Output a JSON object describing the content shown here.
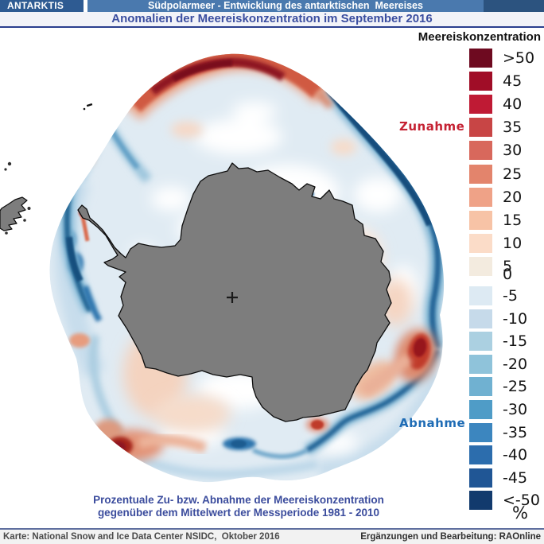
{
  "header": {
    "region_label": "ANTARKTIS",
    "title": "Südpolarmeer - Entwicklung des antarktischen  Meereises",
    "subtitle": "Anomalien der Meereiskonzentration im September 2016"
  },
  "legend": {
    "title": "Meereiskonzentration",
    "unit": "%",
    "increase_label": "Zunahme",
    "decrease_label": "Abnahme",
    "increase_color": "#c52233",
    "decrease_color": "#1f6cb5",
    "items": [
      {
        "label": ">50",
        "color": "#6e0a20"
      },
      {
        "label": "45",
        "color": "#a00d27"
      },
      {
        "label": "40",
        "color": "#bf1a34"
      },
      {
        "label": "35",
        "color": "#c84545"
      },
      {
        "label": "30",
        "color": "#d8685c"
      },
      {
        "label": "25",
        "color": "#e3846c"
      },
      {
        "label": "20",
        "color": "#efa287"
      },
      {
        "label": "15",
        "color": "#f7c3a6"
      },
      {
        "label": "10",
        "color": "#fbdcc8"
      },
      {
        "label": "5",
        "color": "#f3ebdf"
      },
      {
        "label": "0",
        "color": null
      },
      {
        "label": "-5",
        "color": "#ddeaf3"
      },
      {
        "label": "-10",
        "color": "#c6daea"
      },
      {
        "label": "-15",
        "color": "#abd0e1"
      },
      {
        "label": "-20",
        "color": "#8fc3da"
      },
      {
        "label": "-25",
        "color": "#70b1d1"
      },
      {
        "label": "-30",
        "color": "#4f9cc7"
      },
      {
        "label": "-35",
        "color": "#3c86bf"
      },
      {
        "label": "-40",
        "color": "#2c6dad"
      },
      {
        "label": "-45",
        "color": "#205695"
      },
      {
        "label": "<-50",
        "color": "#123a6d"
      }
    ]
  },
  "map": {
    "land_color": "#7d7d7d",
    "pole_marker": "+"
  },
  "caption": {
    "line1": "Prozentuale Zu- bzw. Abnahme der Meereiskonzentration",
    "line2": "gegenüber dem Mittelwert der Messperiode 1981 - 2010"
  },
  "footer": {
    "source": "Karte: National Snow and Ice Data Center NSIDC,  Oktober 2016",
    "credit": "Ergänzungen und Bearbeitung: RAOnline"
  }
}
